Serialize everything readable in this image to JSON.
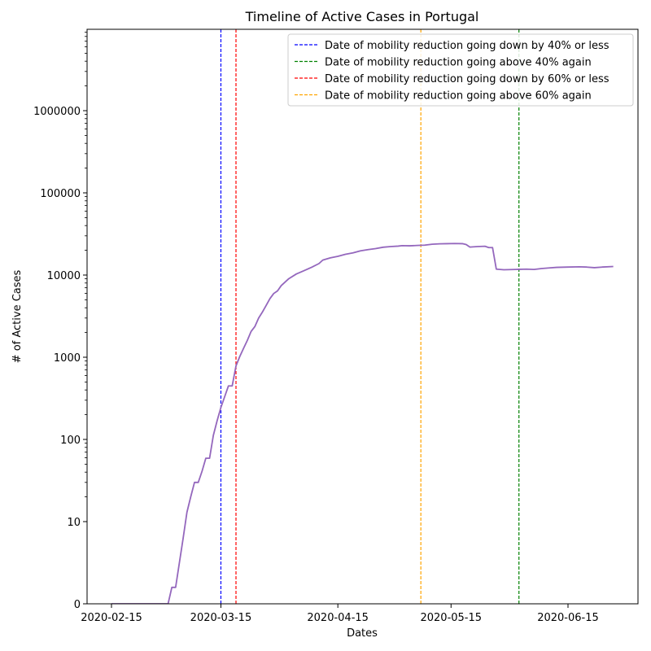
{
  "chart_data": {
    "type": "line",
    "title": "Timeline of Active Cases in Portugal",
    "xlabel": "Dates",
    "ylabel": "# of Active Cases",
    "yscale": "symlog",
    "xlim": [
      "2020-02-15",
      "2020-06-29"
    ],
    "ylim": [
      0,
      10000000
    ],
    "x_ticks": [
      "2020-02-15",
      "2020-03-15",
      "2020-04-15",
      "2020-05-15",
      "2020-06-15"
    ],
    "y_ticks": [
      0,
      10,
      100,
      1000,
      10000,
      100000,
      1000000
    ],
    "y_tick_labels": [
      "0",
      "10",
      "100",
      "1000",
      "10000",
      "100000",
      "1000000"
    ],
    "grid": false,
    "legend_position": "top-right",
    "series": [
      {
        "color": "#9467bd",
        "points": [
          [
            "2020-02-15",
            0
          ],
          [
            "2020-03-01",
            0
          ],
          [
            "2020-03-02",
            2
          ],
          [
            "2020-03-03",
            2
          ],
          [
            "2020-03-04",
            5
          ],
          [
            "2020-03-05",
            8
          ],
          [
            "2020-03-06",
            13
          ],
          [
            "2020-03-07",
            20
          ],
          [
            "2020-03-08",
            30
          ],
          [
            "2020-03-09",
            30
          ],
          [
            "2020-03-10",
            41
          ],
          [
            "2020-03-11",
            59
          ],
          [
            "2020-03-12",
            59
          ],
          [
            "2020-03-13",
            112
          ],
          [
            "2020-03-14",
            169
          ],
          [
            "2020-03-15",
            245
          ],
          [
            "2020-03-16",
            331
          ],
          [
            "2020-03-17",
            448
          ],
          [
            "2020-03-18",
            448
          ],
          [
            "2020-03-19",
            785
          ],
          [
            "2020-03-20",
            1020
          ],
          [
            "2020-03-21",
            1280
          ],
          [
            "2020-03-22",
            1600
          ],
          [
            "2020-03-23",
            2060
          ],
          [
            "2020-03-24",
            2360
          ],
          [
            "2020-03-25",
            2995
          ],
          [
            "2020-03-26",
            3544
          ],
          [
            "2020-03-27",
            4268
          ],
          [
            "2020-03-28",
            5170
          ],
          [
            "2020-03-29",
            5962
          ],
          [
            "2020-03-30",
            6408
          ],
          [
            "2020-03-31",
            7443
          ],
          [
            "2020-04-02",
            9034
          ],
          [
            "2020-04-04",
            10300
          ],
          [
            "2020-04-06",
            11300
          ],
          [
            "2020-04-08",
            12400
          ],
          [
            "2020-04-10",
            13800
          ],
          [
            "2020-04-11",
            15200
          ],
          [
            "2020-04-13",
            16200
          ],
          [
            "2020-04-15",
            16900
          ],
          [
            "2020-04-17",
            17900
          ],
          [
            "2020-04-19",
            18600
          ],
          [
            "2020-04-21",
            19700
          ],
          [
            "2020-04-23",
            20400
          ],
          [
            "2020-04-25",
            21000
          ],
          [
            "2020-04-27",
            21800
          ],
          [
            "2020-04-29",
            22200
          ],
          [
            "2020-05-01",
            22500
          ],
          [
            "2020-05-02",
            22800
          ],
          [
            "2020-05-04",
            22700
          ],
          [
            "2020-05-06",
            22900
          ],
          [
            "2020-05-08",
            23100
          ],
          [
            "2020-05-10",
            23700
          ],
          [
            "2020-05-12",
            24000
          ],
          [
            "2020-05-14",
            24100
          ],
          [
            "2020-05-16",
            24200
          ],
          [
            "2020-05-18",
            24100
          ],
          [
            "2020-05-19",
            23500
          ],
          [
            "2020-05-20",
            21900
          ],
          [
            "2020-05-22",
            22200
          ],
          [
            "2020-05-24",
            22400
          ],
          [
            "2020-05-25",
            21600
          ],
          [
            "2020-05-26",
            21600
          ],
          [
            "2020-05-27",
            11800
          ],
          [
            "2020-05-29",
            11600
          ],
          [
            "2020-06-01",
            11700
          ],
          [
            "2020-06-04",
            11800
          ],
          [
            "2020-06-06",
            11700
          ],
          [
            "2020-06-08",
            12000
          ],
          [
            "2020-06-10",
            12200
          ],
          [
            "2020-06-12",
            12400
          ],
          [
            "2020-06-15",
            12500
          ],
          [
            "2020-06-18",
            12600
          ],
          [
            "2020-06-20",
            12500
          ],
          [
            "2020-06-22",
            12300
          ],
          [
            "2020-06-24",
            12500
          ],
          [
            "2020-06-27",
            12700
          ]
        ]
      }
    ],
    "vlines": [
      {
        "date": "2020-03-15",
        "color": "#0000ff",
        "label": "Date of mobility reduction going down by 40% or less"
      },
      {
        "date": "2020-06-02",
        "color": "#008000",
        "label": "Date of mobility reduction going above 40% again"
      },
      {
        "date": "2020-03-19",
        "color": "#ff0000",
        "label": "Date of mobility reduction going down by 60% or less"
      },
      {
        "date": "2020-05-07",
        "color": "#ffa500",
        "label": "Date of mobility reduction going above 60% again"
      }
    ]
  }
}
